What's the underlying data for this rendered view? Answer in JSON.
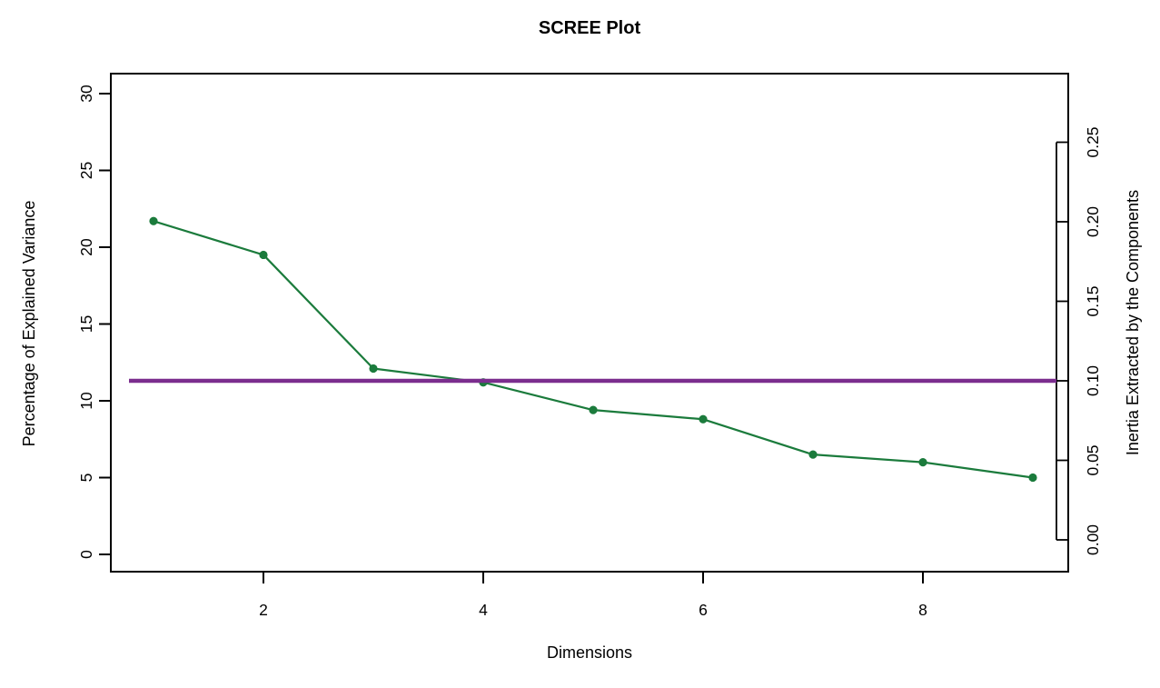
{
  "page": {
    "background": "#ffffff",
    "foreground": "#000000"
  },
  "chart_data": {
    "type": "line",
    "title": "SCREE Plot",
    "xlabel": "Dimensions",
    "ylabel_left": "Percentage of Explained Variance",
    "ylabel_right": "Inertia Extracted by the Components",
    "x": [
      1,
      2,
      3,
      4,
      5,
      6,
      7,
      8,
      9
    ],
    "series": [
      {
        "name": "Percentage of Explained Variance",
        "values": [
          21.7,
          19.5,
          12.1,
          11.2,
          9.4,
          8.8,
          6.5,
          6.0,
          5.0
        ],
        "color": "#1B7B3C",
        "marker": "filled-circle",
        "line_width": 2.2
      }
    ],
    "reference_line": {
      "orientation": "horizontal",
      "percent_value": 11.3,
      "inertia_value": 0.1,
      "color": "#7B2D8E",
      "line_width": 4.5
    },
    "x_axis": {
      "tick_labels": [
        2,
        4,
        6,
        8
      ],
      "range": [
        1,
        9
      ]
    },
    "left_axis": {
      "tick_labels": [
        0,
        5,
        10,
        15,
        20,
        25,
        30
      ],
      "range": [
        0,
        30
      ]
    },
    "right_axis": {
      "tick_labels": [
        "0.00",
        "0.05",
        "0.10",
        "0.15",
        "0.20",
        "0.25"
      ],
      "range": [
        0,
        0.25
      ]
    },
    "grid": false,
    "legend": "none"
  }
}
